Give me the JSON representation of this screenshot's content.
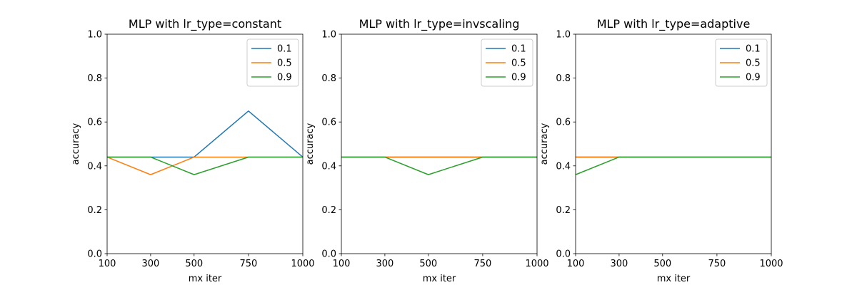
{
  "chart_data": [
    {
      "type": "line",
      "title": "MLP with lr_type=constant",
      "xlabel": "mx iter",
      "ylabel": "accuracy",
      "x": [
        100,
        300,
        500,
        750,
        1000
      ],
      "xticks": [
        "100",
        "300",
        "500",
        "750",
        "1000"
      ],
      "yticks": [
        "0.0",
        "0.2",
        "0.4",
        "0.6",
        "0.8",
        "1.0"
      ],
      "ylim": [
        0,
        1
      ],
      "legend_position": "upper right",
      "series": [
        {
          "name": "0.1",
          "color": "#1f77b4",
          "values": [
            0.44,
            0.44,
            0.44,
            0.65,
            0.44
          ]
        },
        {
          "name": "0.5",
          "color": "#ff7f0e",
          "values": [
            0.44,
            0.36,
            0.44,
            0.44,
            0.44
          ]
        },
        {
          "name": "0.9",
          "color": "#2ca02c",
          "values": [
            0.44,
            0.44,
            0.36,
            0.44,
            0.44
          ]
        }
      ]
    },
    {
      "type": "line",
      "title": "MLP with lr_type=invscaling",
      "xlabel": "mx iter",
      "ylabel": "accuracy",
      "x": [
        100,
        300,
        500,
        750,
        1000
      ],
      "xticks": [
        "100",
        "300",
        "500",
        "750",
        "1000"
      ],
      "yticks": [
        "0.0",
        "0.2",
        "0.4",
        "0.6",
        "0.8",
        "1.0"
      ],
      "ylim": [
        0,
        1
      ],
      "legend_position": "upper right",
      "series": [
        {
          "name": "0.1",
          "color": "#1f77b4",
          "values": [
            0.44,
            0.44,
            0.44,
            0.44,
            0.44
          ]
        },
        {
          "name": "0.5",
          "color": "#ff7f0e",
          "values": [
            0.44,
            0.44,
            0.44,
            0.44,
            0.44
          ]
        },
        {
          "name": "0.9",
          "color": "#2ca02c",
          "values": [
            0.44,
            0.44,
            0.36,
            0.44,
            0.44
          ]
        }
      ]
    },
    {
      "type": "line",
      "title": "MLP with lr_type=adaptive",
      "xlabel": "mx iter",
      "ylabel": "accuracy",
      "x": [
        100,
        300,
        500,
        750,
        1000
      ],
      "xticks": [
        "100",
        "300",
        "500",
        "750",
        "1000"
      ],
      "yticks": [
        "0.0",
        "0.2",
        "0.4",
        "0.6",
        "0.8",
        "1.0"
      ],
      "ylim": [
        0,
        1
      ],
      "legend_position": "upper right",
      "series": [
        {
          "name": "0.1",
          "color": "#1f77b4",
          "values": [
            0.44,
            0.44,
            0.44,
            0.44,
            0.44
          ]
        },
        {
          "name": "0.5",
          "color": "#ff7f0e",
          "values": [
            0.44,
            0.44,
            0.44,
            0.44,
            0.44
          ]
        },
        {
          "name": "0.9",
          "color": "#2ca02c",
          "values": [
            0.36,
            0.44,
            0.44,
            0.44,
            0.44
          ]
        }
      ]
    }
  ]
}
